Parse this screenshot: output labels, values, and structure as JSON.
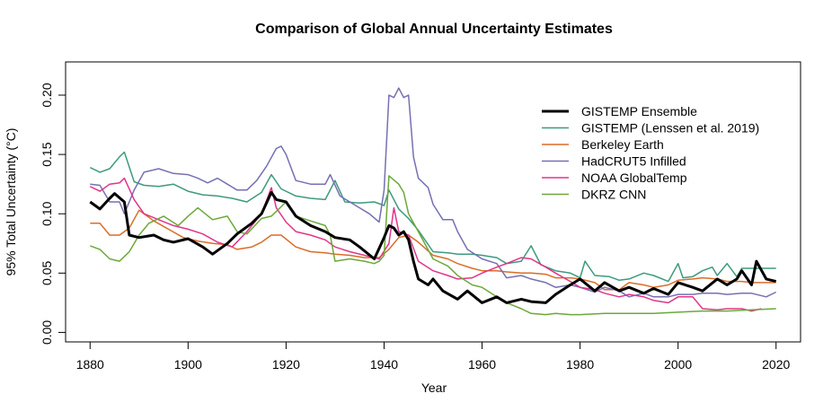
{
  "chart_data": {
    "type": "line",
    "title": "Comparison of Global Annual Uncertainty Estimates",
    "xlabel": "Year",
    "ylabel": "95% Total Uncertainty (°C)",
    "xlim": [
      1875,
      2025
    ],
    "ylim": [
      -0.008,
      0.228
    ],
    "xticks": [
      1880,
      1900,
      1920,
      1940,
      1960,
      1980,
      2000,
      2020
    ],
    "yticks": [
      0.0,
      0.05,
      0.1,
      0.15,
      0.2
    ],
    "ytick_labels": [
      "0.00",
      "0.05",
      "0.10",
      "0.15",
      "0.20"
    ],
    "grid": false,
    "legend_position": "top-right",
    "series": [
      {
        "name": "GISTEMP Ensemble",
        "color": "#000000",
        "width": 3,
        "x": [
          1880,
          1882,
          1884,
          1885,
          1887,
          1888,
          1890,
          1893,
          1895,
          1897,
          1900,
          1903,
          1905,
          1908,
          1910,
          1913,
          1915,
          1917,
          1918,
          1920,
          1922,
          1925,
          1928,
          1930,
          1933,
          1935,
          1938,
          1940,
          1941,
          1942,
          1943,
          1944,
          1945,
          1946,
          1947,
          1949,
          1950,
          1952,
          1955,
          1957,
          1960,
          1963,
          1965,
          1968,
          1970,
          1973,
          1975,
          1978,
          1980,
          1983,
          1985,
          1988,
          1990,
          1993,
          1995,
          1998,
          2000,
          2003,
          2005,
          2008,
          2010,
          2012,
          2013,
          2015,
          2016,
          2018,
          2020
        ],
        "y": [
          0.11,
          0.104,
          0.113,
          0.117,
          0.11,
          0.082,
          0.08,
          0.082,
          0.078,
          0.076,
          0.079,
          0.072,
          0.066,
          0.075,
          0.083,
          0.092,
          0.1,
          0.118,
          0.112,
          0.11,
          0.098,
          0.09,
          0.085,
          0.08,
          0.078,
          0.072,
          0.062,
          0.08,
          0.09,
          0.088,
          0.082,
          0.085,
          0.078,
          0.06,
          0.045,
          0.04,
          0.045,
          0.035,
          0.028,
          0.035,
          0.025,
          0.03,
          0.025,
          0.028,
          0.026,
          0.025,
          0.032,
          0.04,
          0.045,
          0.035,
          0.042,
          0.035,
          0.038,
          0.033,
          0.037,
          0.032,
          0.042,
          0.038,
          0.035,
          0.045,
          0.04,
          0.045,
          0.052,
          0.04,
          0.06,
          0.045,
          0.043
        ]
      },
      {
        "name": "GISTEMP (Lenssen et al. 2019)",
        "color": "#3e9a7d",
        "width": 1.5,
        "x": [
          1880,
          1882,
          1884,
          1886,
          1887,
          1889,
          1891,
          1894,
          1897,
          1900,
          1903,
          1906,
          1909,
          1912,
          1915,
          1917,
          1919,
          1922,
          1925,
          1928,
          1930,
          1932,
          1935,
          1938,
          1940,
          1941,
          1943,
          1945,
          1947,
          1950,
          1953,
          1955,
          1958,
          1960,
          1963,
          1965,
          1968,
          1970,
          1972,
          1975,
          1978,
          1980,
          1981,
          1983,
          1986,
          1988,
          1990,
          1993,
          1995,
          1998,
          2000,
          2001,
          2003,
          2005,
          2007,
          2008,
          2010,
          2012,
          2013,
          2015,
          2020
        ],
        "y": [
          0.139,
          0.135,
          0.138,
          0.148,
          0.152,
          0.127,
          0.124,
          0.123,
          0.125,
          0.119,
          0.116,
          0.115,
          0.113,
          0.11,
          0.118,
          0.133,
          0.121,
          0.115,
          0.113,
          0.112,
          0.128,
          0.11,
          0.109,
          0.11,
          0.107,
          0.12,
          0.104,
          0.096,
          0.086,
          0.068,
          0.067,
          0.066,
          0.066,
          0.065,
          0.063,
          0.058,
          0.06,
          0.073,
          0.057,
          0.052,
          0.05,
          0.046,
          0.06,
          0.048,
          0.047,
          0.044,
          0.045,
          0.05,
          0.048,
          0.043,
          0.058,
          0.046,
          0.047,
          0.052,
          0.055,
          0.048,
          0.058,
          0.047,
          0.054,
          0.054,
          0.054
        ]
      },
      {
        "name": "Berkeley Earth",
        "color": "#d96d28",
        "width": 1.5,
        "x": [
          1880,
          1882,
          1884,
          1886,
          1888,
          1890,
          1893,
          1896,
          1899,
          1902,
          1905,
          1908,
          1910,
          1913,
          1915,
          1917,
          1919,
          1922,
          1925,
          1928,
          1930,
          1933,
          1936,
          1939,
          1941,
          1943,
          1945,
          1947,
          1950,
          1953,
          1955,
          1958,
          1960,
          1963,
          1965,
          1968,
          1970,
          1973,
          1975,
          1978,
          1980,
          1983,
          1985,
          1988,
          1990,
          1993,
          1995,
          1998,
          2000,
          2003,
          2005,
          2008,
          2010,
          2013,
          2015,
          2018,
          2020
        ],
        "y": [
          0.092,
          0.092,
          0.082,
          0.082,
          0.088,
          0.103,
          0.094,
          0.087,
          0.08,
          0.077,
          0.075,
          0.074,
          0.07,
          0.072,
          0.076,
          0.082,
          0.082,
          0.072,
          0.068,
          0.067,
          0.066,
          0.065,
          0.063,
          0.063,
          0.07,
          0.08,
          0.082,
          0.076,
          0.065,
          0.062,
          0.058,
          0.054,
          0.052,
          0.052,
          0.051,
          0.05,
          0.05,
          0.049,
          0.046,
          0.046,
          0.045,
          0.042,
          0.036,
          0.036,
          0.042,
          0.04,
          0.038,
          0.04,
          0.044,
          0.045,
          0.046,
          0.045,
          0.043,
          0.043,
          0.042,
          0.042,
          0.042
        ]
      },
      {
        "name": "HadCRUT5 Infilled",
        "color": "#7570b3",
        "width": 1.5,
        "x": [
          1880,
          1882,
          1884,
          1886,
          1887,
          1889,
          1891,
          1894,
          1897,
          1900,
          1902,
          1904,
          1906,
          1908,
          1910,
          1912,
          1914,
          1916,
          1918,
          1919,
          1920,
          1922,
          1925,
          1928,
          1929,
          1931,
          1933,
          1935,
          1937,
          1939,
          1940,
          1941,
          1942,
          1943,
          1944,
          1945,
          1946,
          1947,
          1949,
          1950,
          1952,
          1954,
          1955,
          1957,
          1960,
          1963,
          1965,
          1968,
          1970,
          1973,
          1975,
          1978,
          1980,
          1983,
          1985,
          1988,
          1990,
          1993,
          1995,
          1998,
          2000,
          2003,
          2005,
          2008,
          2010,
          2013,
          2015,
          2018,
          2020
        ],
        "y": [
          0.125,
          0.124,
          0.11,
          0.11,
          0.1,
          0.12,
          0.135,
          0.138,
          0.134,
          0.133,
          0.13,
          0.126,
          0.13,
          0.125,
          0.12,
          0.12,
          0.128,
          0.14,
          0.155,
          0.157,
          0.15,
          0.128,
          0.125,
          0.125,
          0.133,
          0.115,
          0.11,
          0.105,
          0.1,
          0.093,
          0.12,
          0.2,
          0.198,
          0.206,
          0.198,
          0.2,
          0.148,
          0.13,
          0.122,
          0.108,
          0.095,
          0.095,
          0.085,
          0.07,
          0.062,
          0.058,
          0.046,
          0.048,
          0.045,
          0.042,
          0.038,
          0.04,
          0.038,
          0.034,
          0.038,
          0.035,
          0.03,
          0.033,
          0.03,
          0.03,
          0.032,
          0.032,
          0.033,
          0.033,
          0.032,
          0.033,
          0.033,
          0.03,
          0.034
        ]
      },
      {
        "name": "NOAA GlobalTemp",
        "color": "#e0358a",
        "width": 1.5,
        "x": [
          1880,
          1882,
          1884,
          1886,
          1887,
          1889,
          1891,
          1894,
          1897,
          1900,
          1903,
          1906,
          1909,
          1912,
          1915,
          1917,
          1918,
          1920,
          1922,
          1925,
          1928,
          1930,
          1933,
          1936,
          1939,
          1941,
          1942,
          1943,
          1945,
          1947,
          1950,
          1953,
          1955,
          1958,
          1960,
          1963,
          1965,
          1968,
          1970,
          1973,
          1975,
          1978,
          1980,
          1983,
          1985,
          1988,
          1990,
          1993,
          1995,
          1998,
          2000,
          2003,
          2005,
          2008,
          2010,
          2013,
          2015,
          2017
        ],
        "y": [
          0.123,
          0.119,
          0.125,
          0.126,
          0.13,
          0.112,
          0.1,
          0.095,
          0.09,
          0.087,
          0.083,
          0.076,
          0.072,
          0.085,
          0.1,
          0.122,
          0.105,
          0.093,
          0.085,
          0.082,
          0.078,
          0.072,
          0.068,
          0.065,
          0.062,
          0.075,
          0.105,
          0.085,
          0.082,
          0.06,
          0.052,
          0.048,
          0.045,
          0.046,
          0.05,
          0.055,
          0.058,
          0.063,
          0.062,
          0.055,
          0.05,
          0.043,
          0.038,
          0.036,
          0.033,
          0.03,
          0.032,
          0.03,
          0.027,
          0.025,
          0.03,
          0.03,
          0.02,
          0.019,
          0.02,
          0.02,
          0.018,
          0.02
        ]
      },
      {
        "name": "DKRZ CNN",
        "color": "#6ca83a",
        "width": 1.5,
        "x": [
          1880,
          1882,
          1884,
          1886,
          1888,
          1890,
          1892,
          1895,
          1898,
          1900,
          1902,
          1905,
          1908,
          1910,
          1912,
          1915,
          1917,
          1920,
          1922,
          1925,
          1928,
          1929,
          1930,
          1933,
          1936,
          1938,
          1939,
          1940,
          1941,
          1943,
          1944,
          1945,
          1947,
          1950,
          1953,
          1955,
          1958,
          1960,
          1963,
          1965,
          1968,
          1970,
          1973,
          1975,
          1978,
          1980,
          1985,
          1990,
          1995,
          2000,
          2005,
          2010,
          2015,
          2020
        ],
        "y": [
          0.073,
          0.07,
          0.062,
          0.06,
          0.068,
          0.082,
          0.092,
          0.098,
          0.09,
          0.098,
          0.105,
          0.095,
          0.098,
          0.085,
          0.083,
          0.096,
          0.098,
          0.11,
          0.098,
          0.094,
          0.09,
          0.082,
          0.06,
          0.062,
          0.06,
          0.058,
          0.06,
          0.065,
          0.132,
          0.125,
          0.118,
          0.1,
          0.085,
          0.062,
          0.056,
          0.048,
          0.04,
          0.038,
          0.03,
          0.025,
          0.02,
          0.016,
          0.015,
          0.016,
          0.015,
          0.015,
          0.016,
          0.016,
          0.016,
          0.017,
          0.018,
          0.018,
          0.019,
          0.02
        ]
      }
    ]
  }
}
